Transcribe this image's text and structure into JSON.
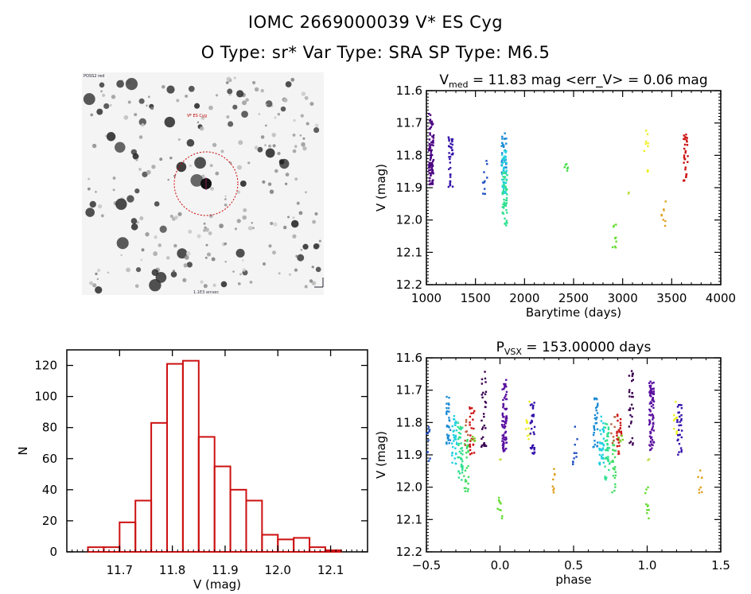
{
  "header": {
    "title_line1": "IOMC 2669000039    V* ES Cyg",
    "title_line2": "O Type: sr*  Var Type: SRA  SP Type: M6.5"
  },
  "image_panel": {
    "label_top_left": "POSS2 red",
    "label_target": "V* ES Cyg",
    "label_bottom": "1.1E3 arcsec",
    "marker_color": "#cc0000"
  },
  "chart_data": [
    {
      "type": "scatter",
      "title": "V_med = 11.83 mag <err_V> = 0.06 mag",
      "title_main": "V",
      "title_sub": "med",
      "title_rest": " = 11.83 mag <err_V> = 0.06 mag",
      "xlabel": "Barytime (days)",
      "ylabel": "V (mag)",
      "xlim": [
        1000,
        4000
      ],
      "ylim": [
        12.2,
        11.6
      ],
      "xticks": [
        "1000",
        "1500",
        "2000",
        "2500",
        "3000",
        "3500",
        "4000"
      ],
      "yticks": [
        "11.6",
        "11.7",
        "11.8",
        "11.9",
        "12.0",
        "12.1",
        "12.2"
      ],
      "series": [
        {
          "name": "g1",
          "color": "#4b0082",
          "x": 1050,
          "ymin": 11.67,
          "ymax": 11.89,
          "n": 90
        },
        {
          "name": "g2",
          "color": "#3311aa",
          "x": 1250,
          "ymin": 11.72,
          "ymax": 11.9,
          "n": 35
        },
        {
          "name": "g3",
          "color": "#1f4fbf",
          "x": 1600,
          "ymin": 11.81,
          "ymax": 11.93,
          "n": 10
        },
        {
          "name": "g4",
          "color": "#1a8ad4",
          "x": 1790,
          "ymin": 11.72,
          "ymax": 11.86,
          "n": 30
        },
        {
          "name": "g5",
          "color": "#22d0e0",
          "x": 1795,
          "ymin": 11.78,
          "ymax": 11.92,
          "n": 40
        },
        {
          "name": "g6",
          "color": "#30e090",
          "x": 1800,
          "ymin": 11.85,
          "ymax": 12.02,
          "n": 50
        },
        {
          "name": "g7",
          "color": "#44dd44",
          "x": 2420,
          "ymin": 11.82,
          "ymax": 11.85,
          "n": 6
        },
        {
          "name": "g8",
          "color": "#66dd33",
          "x": 2920,
          "ymin": 12.0,
          "ymax": 12.1,
          "n": 10
        },
        {
          "name": "g9",
          "color": "#bbdd44",
          "x": 3060,
          "ymin": 11.91,
          "ymax": 11.92,
          "n": 2
        },
        {
          "name": "g10",
          "color": "#eeee22",
          "x": 3240,
          "ymin": 11.72,
          "ymax": 11.86,
          "n": 10
        },
        {
          "name": "g11",
          "color": "#e0a020",
          "x": 3420,
          "ymin": 11.94,
          "ymax": 12.02,
          "n": 8
        },
        {
          "name": "g12",
          "color": "#cc1111",
          "x": 3640,
          "ymin": 11.73,
          "ymax": 11.88,
          "n": 30
        }
      ]
    },
    {
      "type": "bar",
      "title": "",
      "xlabel": "V (mag)",
      "ylabel": "N",
      "xlim": [
        11.6,
        12.17
      ],
      "ylim": [
        0,
        130
      ],
      "xticks": [
        "11.7",
        "11.8",
        "11.9",
        "12.0",
        "12.1"
      ],
      "yticks": [
        "0",
        "20",
        "40",
        "60",
        "80",
        "100",
        "120"
      ],
      "bin_edges": [
        11.64,
        11.67,
        11.7,
        11.73,
        11.76,
        11.79,
        11.82,
        11.85,
        11.88,
        11.91,
        11.94,
        11.97,
        12.0,
        12.03,
        12.06,
        12.09,
        12.12
      ],
      "values": [
        3,
        3,
        19,
        33,
        83,
        121,
        123,
        74,
        55,
        40,
        33,
        11,
        8,
        9,
        3,
        1
      ],
      "color": "#cc1111"
    },
    {
      "type": "scatter",
      "title": "P_vsx = 153.00000 days",
      "title_main": "P",
      "title_sub": "VSX",
      "title_rest": " = 153.00000 days",
      "xlabel": "phase",
      "ylabel": "V (mag)",
      "xlim": [
        -0.5,
        1.5
      ],
      "ylim": [
        12.2,
        11.6
      ],
      "xticks": [
        "−0.5",
        "0.0",
        "0.5",
        "1.0",
        "1.5"
      ],
      "yticks": [
        "11.6",
        "11.7",
        "11.8",
        "11.9",
        "12.0",
        "12.1",
        "12.2"
      ],
      "series": [
        {
          "name": "p1",
          "color": "#1f4fbf",
          "x": -0.49,
          "ymin": 11.81,
          "ymax": 11.93,
          "n": 10
        },
        {
          "name": "p2",
          "color": "#1a8ad4",
          "x": -0.35,
          "ymin": 11.72,
          "ymax": 11.88,
          "n": 30
        },
        {
          "name": "p3",
          "color": "#22d0e0",
          "x": -0.31,
          "ymin": 11.78,
          "ymax": 11.93,
          "n": 35
        },
        {
          "name": "p4",
          "color": "#30e090",
          "x": -0.27,
          "ymin": 11.8,
          "ymax": 11.98,
          "n": 40
        },
        {
          "name": "p5",
          "color": "#44dd66",
          "x": -0.23,
          "ymin": 11.85,
          "ymax": 12.02,
          "n": 25
        },
        {
          "name": "p6",
          "color": "#c06040",
          "x": -0.23,
          "ymin": 11.76,
          "ymax": 11.88,
          "n": 8
        },
        {
          "name": "p7",
          "color": "#cc1111",
          "x": -0.19,
          "ymin": 11.74,
          "ymax": 11.9,
          "n": 25
        },
        {
          "name": "p8",
          "color": "#77cc22",
          "x": -0.18,
          "ymin": 11.83,
          "ymax": 11.86,
          "n": 5
        },
        {
          "name": "p9",
          "color": "#3a0050",
          "x": -0.11,
          "ymin": 11.64,
          "ymax": 11.88,
          "n": 30
        },
        {
          "name": "p10",
          "color": "#5a10a0",
          "x": 0.03,
          "ymin": 11.66,
          "ymax": 11.89,
          "n": 80
        },
        {
          "name": "p11",
          "color": "#eeee22",
          "x": 0.19,
          "ymin": 11.73,
          "ymax": 11.86,
          "n": 10
        },
        {
          "name": "p12",
          "color": "#3311aa",
          "x": 0.22,
          "ymin": 11.73,
          "ymax": 11.9,
          "n": 30
        },
        {
          "name": "p13",
          "color": "#66dd33",
          "x": 0.0,
          "ymin": 12.0,
          "ymax": 12.1,
          "n": 10
        },
        {
          "name": "p14",
          "color": "#bbdd44",
          "x": 0.0,
          "ymin": 11.91,
          "ymax": 11.92,
          "n": 2
        },
        {
          "name": "p15",
          "color": "#e0a020",
          "x": 0.36,
          "ymin": 11.94,
          "ymax": 12.02,
          "n": 8
        },
        {
          "name": "p16",
          "color": "#1f4fbf",
          "x": 0.51,
          "ymin": 11.81,
          "ymax": 11.93,
          "n": 10
        },
        {
          "name": "p17",
          "color": "#1a8ad4",
          "x": 0.65,
          "ymin": 11.72,
          "ymax": 11.88,
          "n": 30
        },
        {
          "name": "p18",
          "color": "#22d0e0",
          "x": 0.69,
          "ymin": 11.78,
          "ymax": 11.93,
          "n": 35
        },
        {
          "name": "p19",
          "color": "#30e090",
          "x": 0.73,
          "ymin": 11.8,
          "ymax": 11.98,
          "n": 40
        },
        {
          "name": "p20",
          "color": "#44dd66",
          "x": 0.77,
          "ymin": 11.85,
          "ymax": 12.02,
          "n": 25
        },
        {
          "name": "p21",
          "color": "#c06040",
          "x": 0.77,
          "ymin": 11.76,
          "ymax": 11.88,
          "n": 8
        },
        {
          "name": "p22",
          "color": "#cc1111",
          "x": 0.81,
          "ymin": 11.74,
          "ymax": 11.9,
          "n": 25
        },
        {
          "name": "p23",
          "color": "#77cc22",
          "x": 0.82,
          "ymin": 11.83,
          "ymax": 11.86,
          "n": 5
        },
        {
          "name": "p24",
          "color": "#3a0050",
          "x": 0.89,
          "ymin": 11.64,
          "ymax": 11.88,
          "n": 30
        },
        {
          "name": "p25",
          "color": "#5a10a0",
          "x": 1.03,
          "ymin": 11.66,
          "ymax": 11.89,
          "n": 80
        },
        {
          "name": "p26",
          "color": "#eeee22",
          "x": 1.19,
          "ymin": 11.73,
          "ymax": 11.86,
          "n": 10
        },
        {
          "name": "p27",
          "color": "#3311aa",
          "x": 1.22,
          "ymin": 11.73,
          "ymax": 11.9,
          "n": 30
        },
        {
          "name": "p28",
          "color": "#66dd33",
          "x": 1.0,
          "ymin": 12.0,
          "ymax": 12.1,
          "n": 10
        },
        {
          "name": "p29",
          "color": "#bbdd44",
          "x": 1.0,
          "ymin": 11.91,
          "ymax": 11.92,
          "n": 2
        },
        {
          "name": "p30",
          "color": "#e0a020",
          "x": 1.36,
          "ymin": 11.94,
          "ymax": 12.02,
          "n": 8
        }
      ]
    }
  ]
}
